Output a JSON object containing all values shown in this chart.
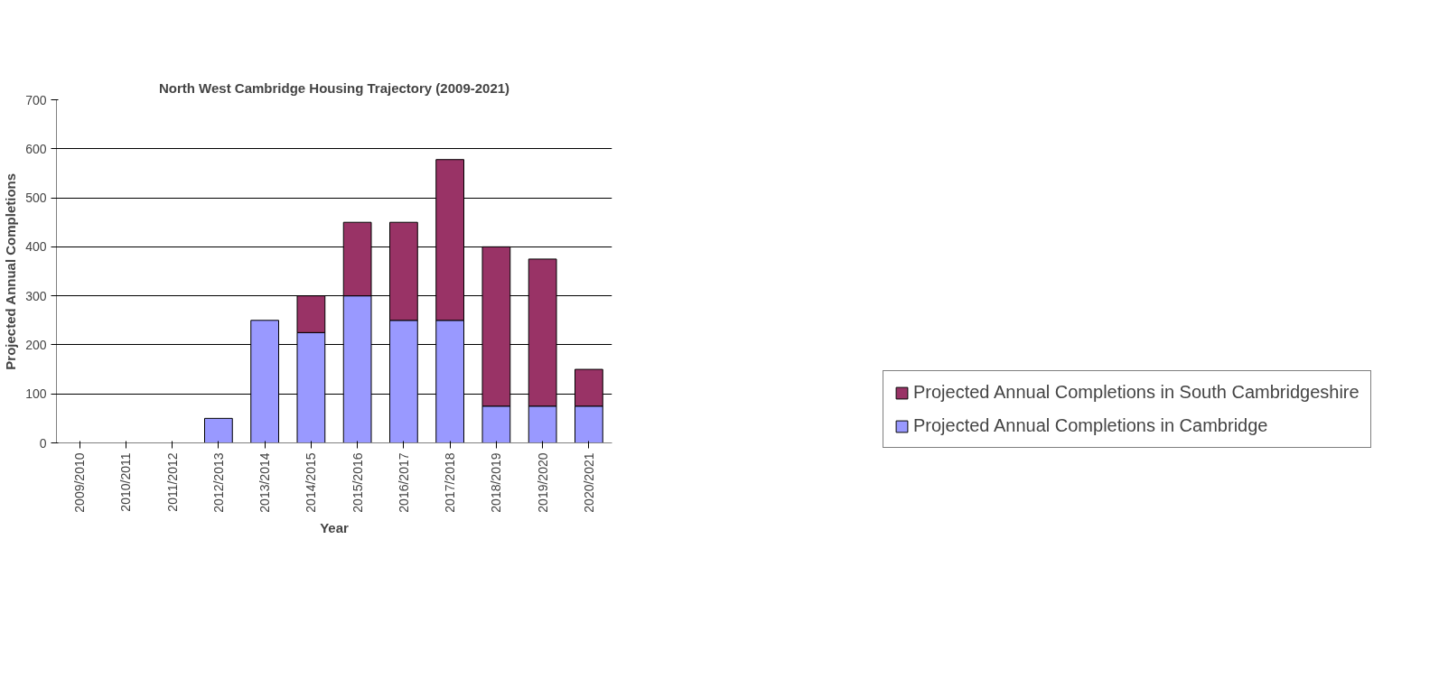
{
  "chart_data": {
    "type": "bar",
    "title": "North West Cambridge Housing Trajectory (2009-2021)",
    "xlabel": "Year",
    "ylabel": "Projected Annual Completions",
    "categories": [
      "2009/2010",
      "2010/2011",
      "2011/2012",
      "2012/2013",
      "2013/2014",
      "2014/2015",
      "2015/2016",
      "2016/2017",
      "2017/2018",
      "2018/2019",
      "2019/2020",
      "2020/2021"
    ],
    "stacked": true,
    "series": [
      {
        "name": "Projected Annual Completions in Cambridge",
        "color": "#9999ff",
        "values": [
          0,
          0,
          0,
          50,
          250,
          225,
          300,
          250,
          250,
          75,
          75,
          75
        ]
      },
      {
        "name": "Projected Annual Completions in South Cambridgeshire",
        "color": "#993366",
        "values": [
          0,
          0,
          0,
          0,
          0,
          75,
          150,
          200,
          328,
          325,
          300,
          75
        ]
      }
    ],
    "ylim": [
      0,
      700
    ],
    "yticks": [
      0,
      100,
      200,
      300,
      400,
      500,
      600,
      700
    ],
    "grid": "y",
    "legend": "right"
  }
}
